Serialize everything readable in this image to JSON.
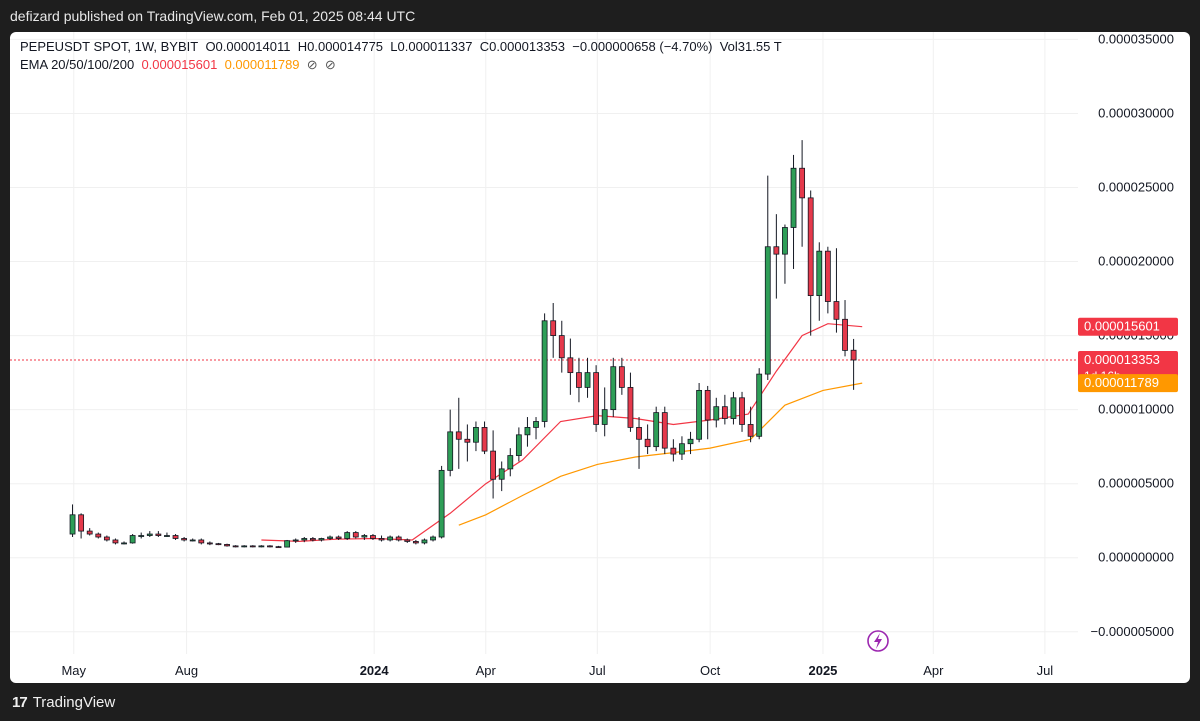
{
  "header": {
    "published": "defizard published on TradingView.com, Feb 01, 2025 08:44 UTC"
  },
  "legend": {
    "symbol": "PEPEUSDT SPOT, 1W, BYBIT",
    "open": "O0.000014011",
    "high": "H0.000014775",
    "low": "L0.000011337",
    "close": "C0.000013353",
    "change": "−0.000000658 (−4.70%)",
    "volume": "Vol31.55 T",
    "ema_label": "EMA 20/50/100/200",
    "ema20": "0.000015601",
    "ema50": "0.000011789",
    "ema100": "⊘",
    "ema200": "⊘"
  },
  "footer": {
    "brand": "TradingView",
    "logo_mark": "17"
  },
  "colors": {
    "up": "#2e9e57",
    "down": "#e5394b",
    "ema20": "#f23645",
    "ema50": "#ff9800",
    "price_line": "#f23645"
  },
  "chart_data": {
    "type": "candlestick",
    "title": "PEPEUSDT SPOT, 1W, BYBIT",
    "y_ticks": [
      "0.000035000",
      "0.000030000",
      "0.000025000",
      "0.000020000",
      "0.000015000",
      "0.000010000",
      "0.000005000",
      "0.000000000",
      "−0.000005000"
    ],
    "ylim": [
      -6.5e-06,
      3.55e-05
    ],
    "x_ticks": [
      {
        "label": "May",
        "date": "2023-05-01",
        "bold": false
      },
      {
        "label": "Aug",
        "date": "2023-08-01",
        "bold": false
      },
      {
        "label": "2024",
        "date": "2024-01-01",
        "bold": true
      },
      {
        "label": "Apr",
        "date": "2024-04-01",
        "bold": false
      },
      {
        "label": "Jul",
        "date": "2024-07-01",
        "bold": false
      },
      {
        "label": "Oct",
        "date": "2024-10-01",
        "bold": false
      },
      {
        "label": "2025",
        "date": "2025-01-01",
        "bold": true
      },
      {
        "label": "Apr",
        "date": "2025-04-01",
        "bold": false
      },
      {
        "label": "Jul",
        "date": "2025-07-01",
        "bold": false
      }
    ],
    "x_range": [
      "2023-03-10",
      "2025-07-28"
    ],
    "price_labels": [
      {
        "name": "EMA 20",
        "value": "0.000015601",
        "color": "#f23645"
      },
      {
        "name": "Close",
        "value": "0.000013353",
        "sub": "1d 16h",
        "color": "#f23645"
      },
      {
        "name": "EMA 50",
        "value": "0.000011789",
        "color": "#ff9800"
      }
    ],
    "current_price": 1.3353e-05,
    "candles": [
      {
        "t": "2023-04-30",
        "o": 1.6,
        "h": 3.6,
        "l": 1.4,
        "c": 2.9
      },
      {
        "t": "2023-05-07",
        "o": 2.9,
        "h": 3.0,
        "l": 1.3,
        "c": 1.8
      },
      {
        "t": "2023-05-14",
        "o": 1.8,
        "h": 2.0,
        "l": 1.5,
        "c": 1.6
      },
      {
        "t": "2023-05-21",
        "o": 1.6,
        "h": 1.7,
        "l": 1.3,
        "c": 1.4
      },
      {
        "t": "2023-05-28",
        "o": 1.4,
        "h": 1.5,
        "l": 1.1,
        "c": 1.2
      },
      {
        "t": "2023-06-04",
        "o": 1.2,
        "h": 1.3,
        "l": 0.9,
        "c": 1.0
      },
      {
        "t": "2023-06-11",
        "o": 1.0,
        "h": 1.1,
        "l": 0.9,
        "c": 1.0
      },
      {
        "t": "2023-06-18",
        "o": 1.0,
        "h": 1.6,
        "l": 0.95,
        "c": 1.5
      },
      {
        "t": "2023-06-25",
        "o": 1.5,
        "h": 1.7,
        "l": 1.3,
        "c": 1.5
      },
      {
        "t": "2023-07-02",
        "o": 1.5,
        "h": 1.8,
        "l": 1.4,
        "c": 1.6
      },
      {
        "t": "2023-07-09",
        "o": 1.6,
        "h": 1.8,
        "l": 1.4,
        "c": 1.5
      },
      {
        "t": "2023-07-16",
        "o": 1.5,
        "h": 1.7,
        "l": 1.4,
        "c": 1.5
      },
      {
        "t": "2023-07-23",
        "o": 1.5,
        "h": 1.6,
        "l": 1.2,
        "c": 1.3
      },
      {
        "t": "2023-07-30",
        "o": 1.3,
        "h": 1.4,
        "l": 1.1,
        "c": 1.2
      },
      {
        "t": "2023-08-06",
        "o": 1.2,
        "h": 1.3,
        "l": 1.1,
        "c": 1.2
      },
      {
        "t": "2023-08-13",
        "o": 1.2,
        "h": 1.3,
        "l": 0.9,
        "c": 1.0
      },
      {
        "t": "2023-08-20",
        "o": 1.0,
        "h": 1.1,
        "l": 0.85,
        "c": 0.95
      },
      {
        "t": "2023-08-27",
        "o": 0.95,
        "h": 1.0,
        "l": 0.85,
        "c": 0.9
      },
      {
        "t": "2023-09-03",
        "o": 0.9,
        "h": 0.95,
        "l": 0.75,
        "c": 0.8
      },
      {
        "t": "2023-09-10",
        "o": 0.8,
        "h": 0.85,
        "l": 0.7,
        "c": 0.75
      },
      {
        "t": "2023-09-17",
        "o": 0.75,
        "h": 0.85,
        "l": 0.7,
        "c": 0.8
      },
      {
        "t": "2023-09-24",
        "o": 0.8,
        "h": 0.85,
        "l": 0.7,
        "c": 0.75
      },
      {
        "t": "2023-10-01",
        "o": 0.75,
        "h": 0.85,
        "l": 0.7,
        "c": 0.8
      },
      {
        "t": "2023-10-08",
        "o": 0.8,
        "h": 0.85,
        "l": 0.7,
        "c": 0.75
      },
      {
        "t": "2023-10-15",
        "o": 0.75,
        "h": 0.8,
        "l": 0.7,
        "c": 0.72
      },
      {
        "t": "2023-10-22",
        "o": 0.72,
        "h": 1.2,
        "l": 0.7,
        "c": 1.15
      },
      {
        "t": "2023-10-29",
        "o": 1.15,
        "h": 1.3,
        "l": 1.0,
        "c": 1.2
      },
      {
        "t": "2023-11-05",
        "o": 1.2,
        "h": 1.4,
        "l": 1.05,
        "c": 1.3
      },
      {
        "t": "2023-11-12",
        "o": 1.3,
        "h": 1.4,
        "l": 1.1,
        "c": 1.2
      },
      {
        "t": "2023-11-19",
        "o": 1.2,
        "h": 1.35,
        "l": 1.1,
        "c": 1.3
      },
      {
        "t": "2023-11-26",
        "o": 1.3,
        "h": 1.5,
        "l": 1.2,
        "c": 1.4
      },
      {
        "t": "2023-12-03",
        "o": 1.4,
        "h": 1.5,
        "l": 1.2,
        "c": 1.3
      },
      {
        "t": "2023-12-10",
        "o": 1.3,
        "h": 1.8,
        "l": 1.2,
        "c": 1.7
      },
      {
        "t": "2023-12-17",
        "o": 1.7,
        "h": 1.8,
        "l": 1.3,
        "c": 1.4
      },
      {
        "t": "2023-12-24",
        "o": 1.4,
        "h": 1.6,
        "l": 1.2,
        "c": 1.5
      },
      {
        "t": "2023-12-31",
        "o": 1.5,
        "h": 1.6,
        "l": 1.2,
        "c": 1.3
      },
      {
        "t": "2024-01-07",
        "o": 1.3,
        "h": 1.5,
        "l": 1.1,
        "c": 1.2
      },
      {
        "t": "2024-01-14",
        "o": 1.2,
        "h": 1.5,
        "l": 1.1,
        "c": 1.4
      },
      {
        "t": "2024-01-21",
        "o": 1.4,
        "h": 1.5,
        "l": 1.1,
        "c": 1.2
      },
      {
        "t": "2024-01-28",
        "o": 1.2,
        "h": 1.3,
        "l": 1.0,
        "c": 1.1
      },
      {
        "t": "2024-02-04",
        "o": 1.1,
        "h": 1.2,
        "l": 0.9,
        "c": 1.0
      },
      {
        "t": "2024-02-11",
        "o": 1.0,
        "h": 1.3,
        "l": 0.9,
        "c": 1.2
      },
      {
        "t": "2024-02-18",
        "o": 1.2,
        "h": 1.5,
        "l": 1.1,
        "c": 1.4
      },
      {
        "t": "2024-02-25",
        "o": 1.4,
        "h": 6.2,
        "l": 1.3,
        "c": 5.9
      },
      {
        "t": "2024-03-03",
        "o": 5.9,
        "h": 10.0,
        "l": 5.5,
        "c": 8.5
      },
      {
        "t": "2024-03-10",
        "o": 8.5,
        "h": 10.8,
        "l": 6.0,
        "c": 8.0
      },
      {
        "t": "2024-03-17",
        "o": 8.0,
        "h": 9.0,
        "l": 6.5,
        "c": 7.8
      },
      {
        "t": "2024-03-24",
        "o": 7.8,
        "h": 9.2,
        "l": 7.2,
        "c": 8.8
      },
      {
        "t": "2024-03-31",
        "o": 8.8,
        "h": 9.2,
        "l": 7.0,
        "c": 7.2
      },
      {
        "t": "2024-04-07",
        "o": 7.2,
        "h": 8.6,
        "l": 4.0,
        "c": 5.3
      },
      {
        "t": "2024-04-14",
        "o": 5.3,
        "h": 6.5,
        "l": 4.5,
        "c": 6.0
      },
      {
        "t": "2024-04-21",
        "o": 6.0,
        "h": 7.4,
        "l": 5.5,
        "c": 6.9
      },
      {
        "t": "2024-04-28",
        "o": 6.9,
        "h": 8.8,
        "l": 6.5,
        "c": 8.3
      },
      {
        "t": "2024-05-05",
        "o": 8.3,
        "h": 9.5,
        "l": 7.5,
        "c": 8.8
      },
      {
        "t": "2024-05-12",
        "o": 8.8,
        "h": 9.5,
        "l": 8.0,
        "c": 9.2
      },
      {
        "t": "2024-05-19",
        "o": 9.2,
        "h": 16.5,
        "l": 8.8,
        "c": 16.0
      },
      {
        "t": "2024-05-26",
        "o": 16.0,
        "h": 17.2,
        "l": 13.5,
        "c": 15.0
      },
      {
        "t": "2024-06-02",
        "o": 15.0,
        "h": 16.0,
        "l": 12.5,
        "c": 13.5
      },
      {
        "t": "2024-06-09",
        "o": 13.5,
        "h": 14.8,
        "l": 11.0,
        "c": 12.5
      },
      {
        "t": "2024-06-16",
        "o": 12.5,
        "h": 13.5,
        "l": 10.5,
        "c": 11.5
      },
      {
        "t": "2024-06-23",
        "o": 11.5,
        "h": 13.5,
        "l": 10.8,
        "c": 12.5
      },
      {
        "t": "2024-06-30",
        "o": 12.5,
        "h": 13.0,
        "l": 8.5,
        "c": 9.0
      },
      {
        "t": "2024-07-07",
        "o": 9.0,
        "h": 11.5,
        "l": 8.2,
        "c": 10.0
      },
      {
        "t": "2024-07-14",
        "o": 10.0,
        "h": 13.5,
        "l": 9.5,
        "c": 12.9
      },
      {
        "t": "2024-07-21",
        "o": 12.9,
        "h": 13.5,
        "l": 11.0,
        "c": 11.5
      },
      {
        "t": "2024-07-28",
        "o": 11.5,
        "h": 12.5,
        "l": 8.5,
        "c": 8.8
      },
      {
        "t": "2024-08-04",
        "o": 8.8,
        "h": 9.5,
        "l": 6.0,
        "c": 8.0
      },
      {
        "t": "2024-08-11",
        "o": 8.0,
        "h": 9.0,
        "l": 7.0,
        "c": 7.5
      },
      {
        "t": "2024-08-18",
        "o": 7.5,
        "h": 10.2,
        "l": 7.2,
        "c": 9.8
      },
      {
        "t": "2024-08-25",
        "o": 9.8,
        "h": 10.2,
        "l": 7.0,
        "c": 7.4
      },
      {
        "t": "2024-09-01",
        "o": 7.4,
        "h": 8.0,
        "l": 6.5,
        "c": 7.0
      },
      {
        "t": "2024-09-08",
        "o": 7.0,
        "h": 8.2,
        "l": 6.6,
        "c": 7.7
      },
      {
        "t": "2024-09-15",
        "o": 7.7,
        "h": 8.5,
        "l": 7.0,
        "c": 8.0
      },
      {
        "t": "2024-09-22",
        "o": 8.0,
        "h": 11.8,
        "l": 7.8,
        "c": 11.3
      },
      {
        "t": "2024-09-29",
        "o": 11.3,
        "h": 11.6,
        "l": 8.0,
        "c": 9.3
      },
      {
        "t": "2024-10-06",
        "o": 9.3,
        "h": 10.8,
        "l": 8.8,
        "c": 10.2
      },
      {
        "t": "2024-10-13",
        "o": 10.2,
        "h": 11.0,
        "l": 9.0,
        "c": 9.4
      },
      {
        "t": "2024-10-20",
        "o": 9.4,
        "h": 11.2,
        "l": 9.0,
        "c": 10.8
      },
      {
        "t": "2024-10-27",
        "o": 10.8,
        "h": 11.2,
        "l": 8.5,
        "c": 9.0
      },
      {
        "t": "2024-11-03",
        "o": 9.0,
        "h": 10.2,
        "l": 7.8,
        "c": 8.2
      },
      {
        "t": "2024-11-10",
        "o": 8.2,
        "h": 12.8,
        "l": 8.0,
        "c": 12.4
      },
      {
        "t": "2024-11-17",
        "o": 12.4,
        "h": 25.8,
        "l": 12.0,
        "c": 21.0
      },
      {
        "t": "2024-11-24",
        "o": 21.0,
        "h": 23.2,
        "l": 17.5,
        "c": 20.5
      },
      {
        "t": "2024-12-01",
        "o": 20.5,
        "h": 22.5,
        "l": 18.5,
        "c": 22.3
      },
      {
        "t": "2024-12-08",
        "o": 22.3,
        "h": 27.2,
        "l": 19.5,
        "c": 26.3
      },
      {
        "t": "2024-12-15",
        "o": 26.3,
        "h": 28.2,
        "l": 21.0,
        "c": 24.3
      },
      {
        "t": "2024-12-22",
        "o": 24.3,
        "h": 24.8,
        "l": 15.0,
        "c": 17.7
      },
      {
        "t": "2024-12-29",
        "o": 17.7,
        "h": 21.3,
        "l": 16.0,
        "c": 20.7
      },
      {
        "t": "2025-01-05",
        "o": 20.7,
        "h": 21.0,
        "l": 16.5,
        "c": 17.3
      },
      {
        "t": "2025-01-12",
        "o": 17.3,
        "h": 20.9,
        "l": 15.2,
        "c": 16.1
      },
      {
        "t": "2025-01-19",
        "o": 16.1,
        "h": 17.4,
        "l": 13.6,
        "c": 14.0
      },
      {
        "t": "2025-01-26",
        "o": 14.011,
        "h": 14.775,
        "l": 11.337,
        "c": 13.353
      }
    ],
    "ema20": [
      [
        "2023-10-01",
        1.2
      ],
      [
        "2023-11-01",
        1.1
      ],
      [
        "2023-12-01",
        1.25
      ],
      [
        "2024-01-01",
        1.3
      ],
      [
        "2024-02-01",
        1.2
      ],
      [
        "2024-03-03",
        3.0
      ],
      [
        "2024-04-01",
        5.0
      ],
      [
        "2024-05-01",
        6.6
      ],
      [
        "2024-06-01",
        9.2
      ],
      [
        "2024-07-01",
        9.6
      ],
      [
        "2024-08-01",
        9.4
      ],
      [
        "2024-09-01",
        9.0
      ],
      [
        "2024-10-01",
        9.3
      ],
      [
        "2024-11-01",
        9.7
      ],
      [
        "2024-11-24",
        12.6
      ],
      [
        "2024-12-15",
        15.0
      ],
      [
        "2025-01-05",
        15.8
      ],
      [
        "2025-02-02",
        15.601
      ]
    ],
    "ema50": [
      [
        "2024-03-10",
        2.2
      ],
      [
        "2024-04-01",
        2.9
      ],
      [
        "2024-05-01",
        4.2
      ],
      [
        "2024-06-01",
        5.5
      ],
      [
        "2024-07-01",
        6.3
      ],
      [
        "2024-08-01",
        6.8
      ],
      [
        "2024-09-01",
        7.1
      ],
      [
        "2024-10-01",
        7.4
      ],
      [
        "2024-11-03",
        8.0
      ],
      [
        "2024-12-01",
        10.3
      ],
      [
        "2025-01-01",
        11.3
      ],
      [
        "2025-02-02",
        11.789
      ]
    ]
  }
}
